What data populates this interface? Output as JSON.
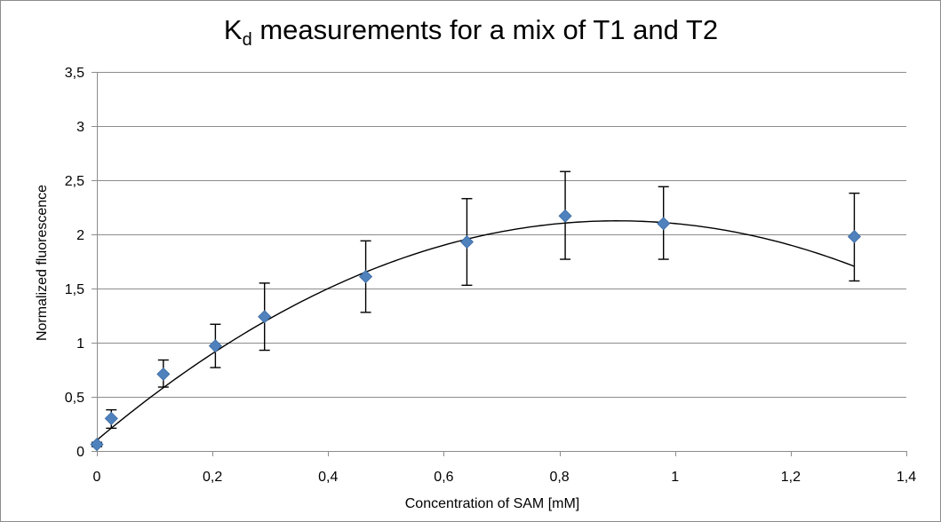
{
  "chart_data": {
    "type": "scatter",
    "title": "K",
    "title_subscript": "d",
    "title_rest": " measurements for a mix of T1 and T2",
    "xlabel": "Concentration of SAM [mM]",
    "ylabel": "Normalized fluorescence",
    "xlim": [
      0,
      1.4
    ],
    "ylim": [
      0,
      3.5
    ],
    "x_ticks": [
      0,
      0.2,
      0.4,
      0.6,
      0.8,
      1,
      1.2,
      1.4
    ],
    "x_tick_labels": [
      "0",
      "0,2",
      "0,4",
      "0,6",
      "0,8",
      "1",
      "1,2",
      "1,4"
    ],
    "y_ticks": [
      0,
      0.5,
      1,
      1.5,
      2,
      2.5,
      3,
      3.5
    ],
    "y_tick_labels": [
      "0",
      "0,5",
      "1",
      "1,5",
      "2",
      "2,5",
      "3",
      "3,5"
    ],
    "grid": true,
    "marker_color": "#4f81bd",
    "series": [
      {
        "x": [
          0,
          0.025,
          0.115,
          0.205,
          0.29,
          0.465,
          0.64,
          0.81,
          0.98,
          1.31
        ],
        "y": [
          0.06,
          0.3,
          0.71,
          0.97,
          1.24,
          1.61,
          1.93,
          2.17,
          2.1,
          1.98
        ],
        "error_low": [
          0.04,
          0.21,
          0.59,
          0.77,
          0.93,
          1.28,
          1.53,
          1.77,
          1.77,
          1.57
        ],
        "error_high": [
          0.08,
          0.38,
          0.84,
          1.17,
          1.55,
          1.94,
          2.33,
          2.58,
          2.44,
          2.38
        ]
      }
    ],
    "trendline": {
      "type": "polynomial",
      "coefficients": [
        0.1,
        4.5,
        -2.5
      ],
      "x_range": [
        0,
        1.31
      ],
      "color": "#000000"
    }
  }
}
